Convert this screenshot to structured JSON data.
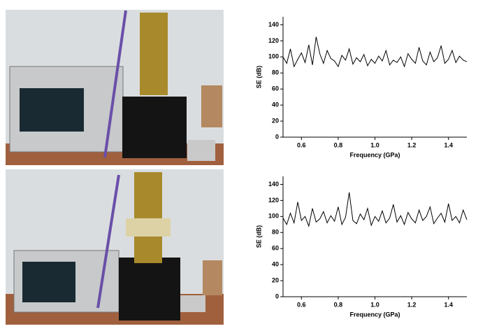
{
  "chart_data": [
    {
      "type": "line",
      "ylabel": "SE (dB)",
      "xlabel": "Frequency (GPa)",
      "xlim": [
        0.5,
        1.5
      ],
      "ylim": [
        0,
        150
      ],
      "xticks": [
        0.6,
        0.8,
        {
          "value": 1,
          "label": "1.0"
        },
        1.2,
        1.4
      ],
      "yticks": [
        0,
        20,
        40,
        60,
        80,
        100,
        120,
        140
      ],
      "x": [
        0.5,
        0.52,
        0.54,
        0.56,
        0.58,
        0.6,
        0.62,
        0.64,
        0.66,
        0.68,
        0.7,
        0.72,
        0.74,
        0.76,
        0.78,
        0.8,
        0.82,
        0.84,
        0.86,
        0.88,
        0.9,
        0.92,
        0.94,
        0.96,
        0.98,
        1,
        1.02,
        1.04,
        1.06,
        1.08,
        1.1,
        1.12,
        1.14,
        1.16,
        1.18,
        1.2,
        1.22,
        1.24,
        1.26,
        1.28,
        1.3,
        1.32,
        1.34,
        1.36,
        1.38,
        1.4,
        1.42,
        1.44,
        1.46,
        1.48,
        1.5
      ],
      "series": [
        {
          "color": "#000000",
          "values": [
            100,
            92,
            110,
            88,
            97,
            105,
            93,
            115,
            90,
            125,
            104,
            92,
            108,
            98,
            95,
            88,
            102,
            96,
            110,
            91,
            99,
            94,
            103,
            89,
            97,
            92,
            101,
            95,
            108,
            90,
            96,
            93,
            100,
            88,
            104,
            97,
            92,
            112,
            95,
            90,
            106,
            94,
            99,
            114,
            92,
            97,
            108,
            93,
            101,
            96,
            94
          ]
        }
      ]
    },
    {
      "type": "line",
      "ylabel": "SE (dB)",
      "xlabel": "Frequency (GPa)",
      "xlim": [
        0.5,
        1.5
      ],
      "ylim": [
        0,
        150
      ],
      "xticks": [
        0.6,
        0.8,
        {
          "value": 1,
          "label": "1.0"
        },
        1.2,
        1.4
      ],
      "yticks": [
        0,
        20,
        40,
        60,
        80,
        100,
        120,
        140
      ],
      "x": [
        0.5,
        0.52,
        0.54,
        0.56,
        0.58,
        0.6,
        0.62,
        0.64,
        0.66,
        0.68,
        0.7,
        0.72,
        0.74,
        0.76,
        0.78,
        0.8,
        0.82,
        0.84,
        0.86,
        0.88,
        0.9,
        0.92,
        0.94,
        0.96,
        0.98,
        1,
        1.02,
        1.04,
        1.06,
        1.08,
        1.1,
        1.12,
        1.14,
        1.16,
        1.18,
        1.2,
        1.22,
        1.24,
        1.26,
        1.28,
        1.3,
        1.32,
        1.34,
        1.36,
        1.38,
        1.4,
        1.42,
        1.44,
        1.46,
        1.48,
        1.5
      ],
      "series": [
        {
          "color": "#000000",
          "values": [
            98,
            90,
            104,
            92,
            118,
            95,
            100,
            88,
            110,
            93,
            97,
            106,
            92,
            101,
            94,
            112,
            90,
            99,
            130,
            95,
            91,
            103,
            96,
            110,
            89,
            100,
            94,
            107,
            92,
            98,
            115,
            93,
            101,
            90,
            105,
            97,
            92,
            108,
            95,
            100,
            112,
            91,
            98,
            104,
            93,
            116,
            95,
            100,
            92,
            108,
            96
          ]
        }
      ]
    }
  ]
}
